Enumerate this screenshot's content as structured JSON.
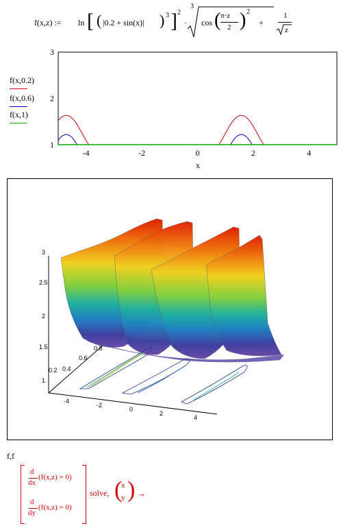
{
  "formula": {
    "lhs": "f(x,z) :=",
    "ln": "ln",
    "inner": "|0.2 + sin(x)|",
    "exp_inner": "3",
    "exp_outer": "2",
    "dot": "·",
    "root_index": "3",
    "cos": "cos",
    "frac_num": "π·z",
    "frac_den": "2",
    "cos_exp": "2",
    "plus": "+",
    "one": "1",
    "sqrt_z": "z"
  },
  "plot2d": {
    "legend": [
      "f(x,0.2)",
      "f(x,0.6)",
      "f(x,1)"
    ],
    "colors": [
      "#cc0000",
      "#0000cc",
      "#00aa00"
    ],
    "x_ticks": [
      "-4",
      "-2",
      "0",
      "2",
      "4"
    ],
    "y_ticks": [
      "1",
      "2",
      "3"
    ],
    "xlabel": "x"
  },
  "plot3d": {
    "z_ticks": [
      "1",
      "1.5",
      "2",
      "2.5",
      "3"
    ],
    "y_ticks": [
      "0.2",
      "0.4",
      "0.6",
      "0.8"
    ],
    "x_ticks": [
      "-4",
      "-2",
      "0",
      "2",
      "4"
    ]
  },
  "solve": {
    "label": "f,f",
    "d": "d",
    "dx": "dx",
    "dy": "dy",
    "expr": "(f(x,z) = 0)",
    "keyword": "solve,",
    "var_x": "x",
    "var_y": "y",
    "arrow": "→"
  },
  "chart_data": {
    "type": "line",
    "xlabel": "x",
    "xlim": [
      -5,
      5
    ],
    "ylim": [
      1,
      3
    ],
    "series": [
      {
        "name": "f(x,0.2)",
        "color": "#cc0000",
        "z": 0.2
      },
      {
        "name": "f(x,0.6)",
        "color": "#0000cc",
        "z": 0.6
      },
      {
        "name": "f(x,1)",
        "color": "#00aa00",
        "z": 1
      }
    ]
  }
}
